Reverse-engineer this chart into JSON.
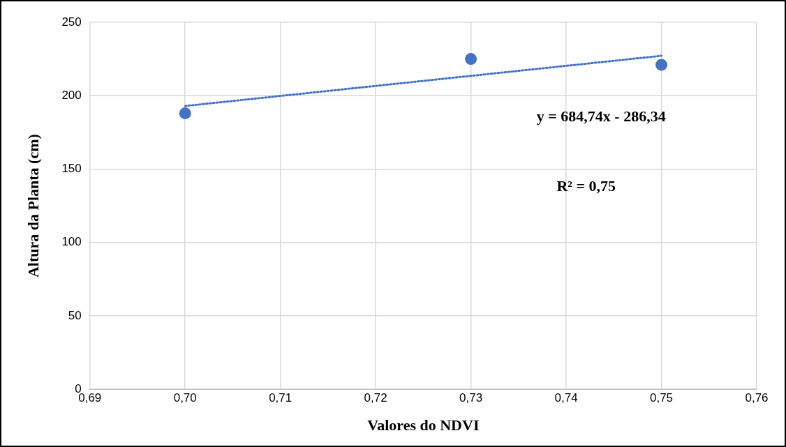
{
  "chart_data": {
    "type": "scatter",
    "xlabel": "Valores do NDVI",
    "ylabel": "Altura da Planta (cm)",
    "series": [
      {
        "color": "#4472c4",
        "x": [
          0.7,
          0.73,
          0.75
        ],
        "values": [
          188,
          225,
          221
        ],
        "marker": "circle"
      },
      {
        "type": "line",
        "color": "#4472c4",
        "x": [
          0.7,
          0.75
        ],
        "values": [
          193.0,
          227.2
        ],
        "line_style": "dotted",
        "marker": "none"
      }
    ],
    "xlim": [
      0.69,
      0.76
    ],
    "xticks": [
      {
        "value": 0.69,
        "label": "0,69"
      },
      {
        "value": 0.7,
        "label": "0,70"
      },
      {
        "value": 0.71,
        "label": "0,71"
      },
      {
        "value": 0.72,
        "label": "0,72"
      },
      {
        "value": 0.73,
        "label": "0,73"
      },
      {
        "value": 0.74,
        "label": "0,74"
      },
      {
        "value": 0.75,
        "label": "0,75"
      },
      {
        "value": 0.76,
        "label": "0,76"
      }
    ],
    "ylim": [
      0,
      250
    ],
    "yticks": [
      0,
      50,
      100,
      150,
      200,
      250
    ],
    "annotations": [
      "y = 684,74x - 286,34",
      "R² = 0,75"
    ],
    "grid": true,
    "legend": false
  }
}
